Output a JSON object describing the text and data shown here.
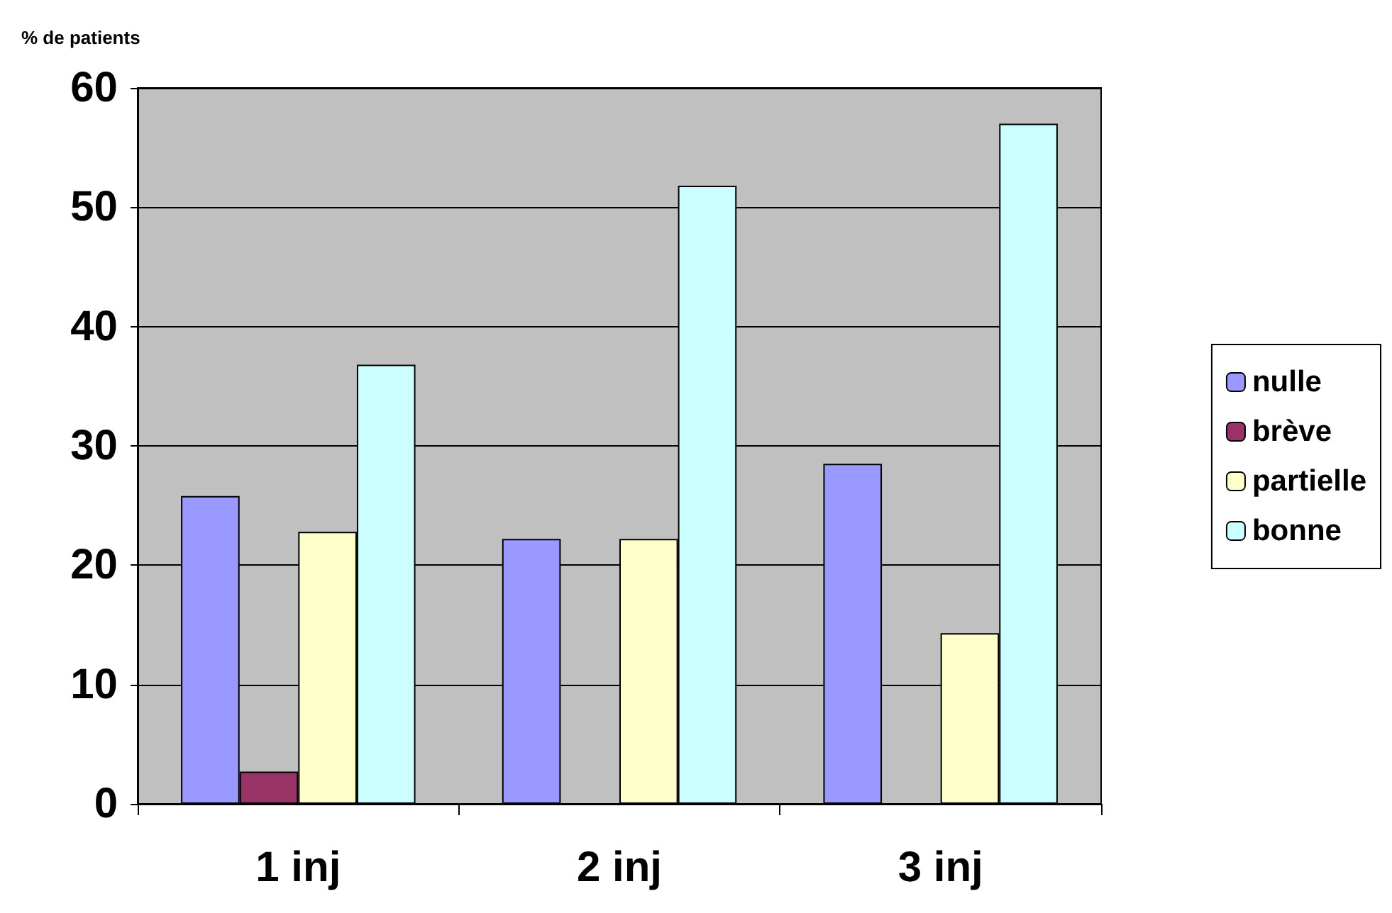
{
  "chart_data": {
    "type": "bar",
    "ylabel": "% de patients",
    "categories": [
      "1 inj",
      "2 inj",
      "3 inj"
    ],
    "series": [
      {
        "name": "nulle",
        "color": "#9999ff",
        "values": [
          25.8,
          22.2,
          28.5
        ]
      },
      {
        "name": "brève",
        "color": "#993366",
        "values": [
          2.7,
          null,
          null
        ]
      },
      {
        "name": "partielle",
        "color": "#ffffcc",
        "values": [
          22.8,
          22.2,
          14.3
        ]
      },
      {
        "name": "bonne",
        "color": "#ccffff",
        "values": [
          36.8,
          51.8,
          57.0
        ]
      }
    ],
    "ylim": [
      0,
      60
    ],
    "yticks": [
      0,
      10,
      20,
      30,
      40,
      50,
      60
    ],
    "grid": "y",
    "legend": "right"
  }
}
